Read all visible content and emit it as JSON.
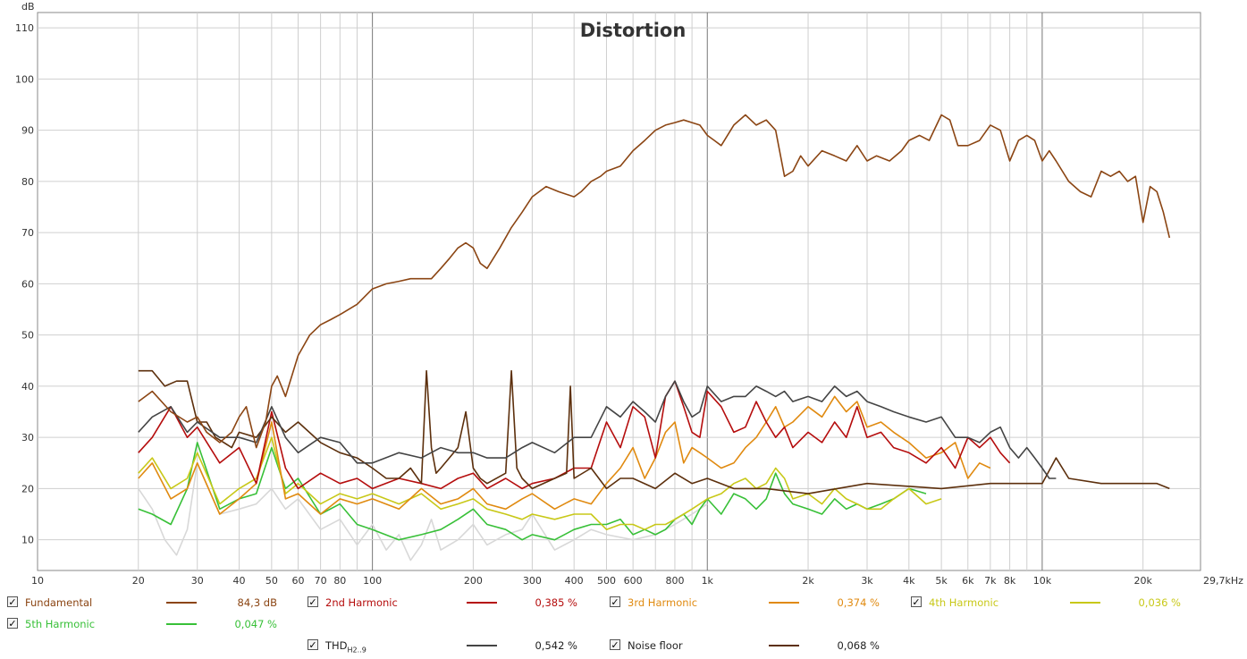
{
  "chart_data": {
    "type": "line",
    "title": "Distortion",
    "ylabel": "dB",
    "xunit": "kHz",
    "x_scale": "log",
    "xlim": [
      10,
      29700
    ],
    "ylim": [
      4,
      113
    ],
    "grid": true,
    "legend_position": "bottom",
    "yticks": [
      10,
      20,
      30,
      40,
      50,
      60,
      70,
      80,
      90,
      100,
      110
    ],
    "xticks": [
      {
        "v": 10,
        "t": "10"
      },
      {
        "v": 20,
        "t": "20"
      },
      {
        "v": 30,
        "t": "30"
      },
      {
        "v": 40,
        "t": "40"
      },
      {
        "v": 50,
        "t": "50"
      },
      {
        "v": 60,
        "t": "60"
      },
      {
        "v": 70,
        "t": "70"
      },
      {
        "v": 80,
        "t": "80"
      },
      {
        "v": 100,
        "t": "100"
      },
      {
        "v": 200,
        "t": "200"
      },
      {
        "v": 300,
        "t": "300"
      },
      {
        "v": 400,
        "t": "400"
      },
      {
        "v": 500,
        "t": "500"
      },
      {
        "v": 600,
        "t": "600"
      },
      {
        "v": 800,
        "t": "800"
      },
      {
        "v": 1000,
        "t": "1k"
      },
      {
        "v": 2000,
        "t": "2k"
      },
      {
        "v": 3000,
        "t": "3k"
      },
      {
        "v": 4000,
        "t": "4k"
      },
      {
        "v": 5000,
        "t": "5k"
      },
      {
        "v": 6000,
        "t": "6k"
      },
      {
        "v": 7000,
        "t": "7k"
      },
      {
        "v": 8000,
        "t": "8k"
      },
      {
        "v": 10000,
        "t": "10k"
      },
      {
        "v": 20000,
        "t": "20k"
      },
      {
        "v": 29700,
        "t": "29,7kHz"
      }
    ],
    "series": [
      {
        "name": "Fundamental",
        "color": "#8b4513",
        "value": "84,3 dB",
        "x": [
          20,
          22,
          25,
          28,
          30,
          32,
          35,
          38,
          40,
          42,
          45,
          48,
          50,
          52,
          55,
          60,
          65,
          70,
          75,
          80,
          90,
          100,
          110,
          120,
          130,
          140,
          150,
          160,
          170,
          180,
          190,
          200,
          210,
          220,
          240,
          260,
          280,
          300,
          330,
          360,
          400,
          420,
          450,
          480,
          500,
          550,
          600,
          650,
          700,
          750,
          800,
          850,
          900,
          950,
          1000,
          1050,
          1100,
          1200,
          1300,
          1400,
          1500,
          1600,
          1700,
          1800,
          1900,
          2000,
          2200,
          2400,
          2600,
          2800,
          3000,
          3200,
          3500,
          3800,
          4000,
          4300,
          4600,
          5000,
          5300,
          5600,
          6000,
          6500,
          7000,
          7500,
          8000,
          8500,
          9000,
          9500,
          10000,
          10500,
          11000,
          12000,
          13000,
          14000,
          15000,
          16000,
          17000,
          18000,
          19000,
          20000,
          21000,
          22000,
          23000,
          24000
        ],
        "y": [
          37,
          39,
          35,
          33,
          34,
          31,
          29,
          31,
          34,
          36,
          28,
          33,
          40,
          42,
          38,
          46,
          50,
          52,
          53,
          54,
          56,
          59,
          60,
          60.5,
          61,
          61,
          61,
          63,
          65,
          67,
          68,
          67,
          64,
          63,
          67,
          71,
          74,
          77,
          79,
          78,
          77,
          78,
          80,
          81,
          82,
          83,
          86,
          88,
          90,
          91,
          91.5,
          92,
          91.5,
          91,
          89,
          88,
          87,
          91,
          93,
          91,
          92,
          90,
          81,
          82,
          85,
          83,
          86,
          85,
          84,
          87,
          84,
          85,
          84,
          86,
          88,
          89,
          88,
          93,
          92,
          87,
          87,
          88,
          91,
          90,
          84,
          88,
          89,
          88,
          84,
          86,
          84,
          80,
          78,
          77,
          82,
          81,
          82,
          80,
          81,
          72,
          79,
          78,
          74,
          69
        ]
      },
      {
        "name": "2nd Harmonic",
        "color": "#b50d0d",
        "value": "0,385 %",
        "x": [
          20,
          22,
          25,
          28,
          30,
          35,
          40,
          45,
          50,
          55,
          60,
          70,
          80,
          90,
          100,
          120,
          140,
          160,
          180,
          200,
          220,
          250,
          280,
          300,
          350,
          400,
          450,
          500,
          550,
          600,
          650,
          700,
          750,
          800,
          850,
          900,
          950,
          1000,
          1100,
          1200,
          1300,
          1400,
          1500,
          1600,
          1700,
          1800,
          2000,
          2200,
          2400,
          2600,
          2800,
          3000,
          3300,
          3600,
          4000,
          4500,
          5000,
          5500,
          6000,
          6500,
          7000,
          7500,
          8000
        ],
        "y": [
          27,
          30,
          36,
          30,
          32,
          25,
          28,
          21,
          35,
          24,
          20,
          23,
          21,
          22,
          20,
          22,
          21,
          20,
          22,
          23,
          20,
          22,
          20,
          21,
          22,
          24,
          24,
          33,
          28,
          36,
          34,
          26,
          38,
          41,
          36,
          31,
          30,
          39,
          36,
          31,
          32,
          37,
          33,
          30,
          32,
          28,
          31,
          29,
          33,
          30,
          36,
          30,
          31,
          28,
          27,
          25,
          28,
          24,
          30,
          28,
          30,
          27,
          25
        ]
      },
      {
        "name": "3rd Harmonic",
        "color": "#e08a10",
        "value": "0,374 %",
        "x": [
          20,
          22,
          25,
          28,
          30,
          35,
          40,
          45,
          50,
          55,
          60,
          70,
          80,
          90,
          100,
          120,
          140,
          160,
          180,
          200,
          220,
          250,
          280,
          300,
          350,
          400,
          450,
          500,
          550,
          600,
          650,
          700,
          750,
          800,
          850,
          900,
          950,
          1000,
          1100,
          1200,
          1300,
          1400,
          1500,
          1600,
          1700,
          1800,
          2000,
          2200,
          2400,
          2600,
          2800,
          3000,
          3300,
          3600,
          4000,
          4500,
          5000,
          5500,
          6000,
          6500,
          7000
        ],
        "y": [
          22,
          25,
          18,
          20,
          25,
          15,
          18,
          21,
          33,
          18,
          19,
          15,
          18,
          17,
          18,
          16,
          20,
          17,
          18,
          20,
          17,
          16,
          18,
          19,
          16,
          18,
          17,
          21,
          24,
          28,
          22,
          26,
          31,
          33,
          25,
          28,
          27,
          26,
          24,
          25,
          28,
          30,
          33,
          36,
          32,
          33,
          36,
          34,
          38,
          35,
          37,
          32,
          33,
          31,
          29,
          26,
          27,
          29,
          22,
          25,
          24
        ]
      },
      {
        "name": "4th Harmonic",
        "color": "#c8c818",
        "value": "0,036 %",
        "x": [
          20,
          22,
          25,
          28,
          30,
          35,
          40,
          45,
          50,
          55,
          60,
          70,
          80,
          90,
          100,
          120,
          140,
          160,
          180,
          200,
          220,
          250,
          280,
          300,
          350,
          400,
          450,
          500,
          550,
          600,
          650,
          700,
          750,
          800,
          850,
          900,
          950,
          1000,
          1100,
          1200,
          1300,
          1400,
          1500,
          1600,
          1700,
          1800,
          2000,
          2200,
          2400,
          2600,
          2800,
          3000,
          3300,
          3600,
          4000,
          4500,
          5000
        ],
        "y": [
          23,
          26,
          20,
          22,
          27,
          17,
          20,
          22,
          30,
          19,
          21,
          17,
          19,
          18,
          19,
          17,
          19,
          16,
          17,
          18,
          16,
          15,
          14,
          15,
          14,
          15,
          15,
          12,
          13,
          13,
          12,
          13,
          13,
          14,
          15,
          16,
          17,
          18,
          19,
          21,
          22,
          20,
          21,
          24,
          22,
          18,
          19,
          17,
          20,
          18,
          17,
          16,
          16,
          18,
          20,
          17,
          18
        ]
      },
      {
        "name": "5th Harmonic",
        "color": "#38c038",
        "value": "0,047 %",
        "x": [
          20,
          22,
          25,
          28,
          30,
          35,
          40,
          45,
          50,
          55,
          60,
          70,
          80,
          90,
          100,
          120,
          140,
          160,
          180,
          200,
          220,
          250,
          280,
          300,
          350,
          400,
          450,
          500,
          550,
          600,
          650,
          700,
          750,
          800,
          850,
          900,
          950,
          1000,
          1100,
          1200,
          1300,
          1400,
          1500,
          1600,
          1700,
          1800,
          2000,
          2200,
          2400,
          2600,
          2800,
          3000,
          3300,
          3600,
          4000,
          4500
        ],
        "y": [
          16,
          15,
          13,
          20,
          29,
          16,
          18,
          19,
          28,
          20,
          22,
          15,
          17,
          13,
          12,
          10,
          11,
          12,
          14,
          16,
          13,
          12,
          10,
          11,
          10,
          12,
          13,
          13,
          14,
          11,
          12,
          11,
          12,
          14,
          15,
          13,
          16,
          18,
          15,
          19,
          18,
          16,
          18,
          23,
          19,
          17,
          16,
          15,
          18,
          16,
          17,
          16,
          17,
          18,
          20,
          19
        ]
      },
      {
        "name": "THD",
        "sub": "H2..9",
        "color": "#444444",
        "value": "0,542 %",
        "x": [
          20,
          22,
          25,
          28,
          30,
          35,
          40,
          45,
          50,
          55,
          60,
          70,
          80,
          90,
          100,
          120,
          140,
          160,
          180,
          200,
          220,
          250,
          280,
          300,
          350,
          400,
          450,
          500,
          550,
          600,
          650,
          700,
          750,
          800,
          850,
          900,
          950,
          1000,
          1100,
          1200,
          1300,
          1400,
          1500,
          1600,
          1700,
          1800,
          2000,
          2200,
          2400,
          2600,
          2800,
          3000,
          3300,
          3600,
          4000,
          4500,
          5000,
          5500,
          6000,
          6500,
          7000,
          7500,
          8000,
          8500,
          9000,
          9500,
          10000,
          10500,
          11000
        ],
        "y": [
          31,
          34,
          36,
          31,
          33,
          30,
          30,
          29,
          36,
          30,
          27,
          30,
          29,
          25,
          25,
          27,
          26,
          28,
          27,
          27,
          26,
          26,
          28,
          29,
          27,
          30,
          30,
          36,
          34,
          37,
          35,
          33,
          38,
          41,
          37,
          34,
          35,
          40,
          37,
          38,
          38,
          40,
          39,
          38,
          39,
          37,
          38,
          37,
          40,
          38,
          39,
          37,
          36,
          35,
          34,
          33,
          34,
          30,
          30,
          29,
          31,
          32,
          28,
          26,
          28,
          26,
          24,
          22,
          22
        ]
      },
      {
        "name": "Noise floor",
        "color": "#5c2f0c",
        "value": "0,068 %",
        "x": [
          20,
          22,
          24,
          26,
          28,
          30,
          32,
          34,
          36,
          38,
          40,
          45,
          50,
          55,
          60,
          70,
          80,
          90,
          100,
          110,
          120,
          130,
          140,
          145,
          150,
          155,
          160,
          180,
          190,
          200,
          210,
          220,
          250,
          260,
          270,
          280,
          300,
          350,
          380,
          390,
          400,
          450,
          500,
          550,
          600,
          700,
          800,
          900,
          1000,
          1200,
          1500,
          2000,
          3000,
          5000,
          7000,
          10000,
          11000,
          12000,
          15000,
          20000,
          22000,
          24000
        ],
        "y": [
          43,
          43,
          40,
          41,
          41,
          33,
          33,
          30,
          29,
          28,
          31,
          30,
          34,
          31,
          33,
          29,
          27,
          26,
          24,
          22,
          22,
          24,
          21,
          43,
          28,
          23,
          24,
          28,
          35,
          24,
          22,
          21,
          23,
          43,
          24,
          22,
          20,
          22,
          23,
          40,
          22,
          24,
          20,
          22,
          22,
          20,
          23,
          21,
          22,
          20,
          20,
          19,
          21,
          20,
          21,
          21,
          26,
          22,
          21,
          21,
          21,
          20
        ]
      },
      {
        "name": "",
        "color": "#d8d8d8",
        "x": [
          20,
          22,
          24,
          26,
          28,
          30,
          35,
          40,
          45,
          50,
          55,
          60,
          70,
          80,
          90,
          100,
          110,
          120,
          130,
          140,
          150,
          160,
          180,
          200,
          220,
          250,
          280,
          300,
          350,
          400,
          450,
          500,
          600,
          700,
          800,
          900,
          1000
        ],
        "y": [
          20,
          16,
          10,
          7,
          12,
          25,
          15,
          16,
          17,
          20,
          16,
          18,
          12,
          14,
          9,
          13,
          8,
          11,
          6,
          9,
          14,
          8,
          10,
          13,
          9,
          11,
          12,
          15,
          8,
          10,
          12,
          11,
          10,
          11,
          13,
          15,
          17
        ]
      }
    ]
  }
}
